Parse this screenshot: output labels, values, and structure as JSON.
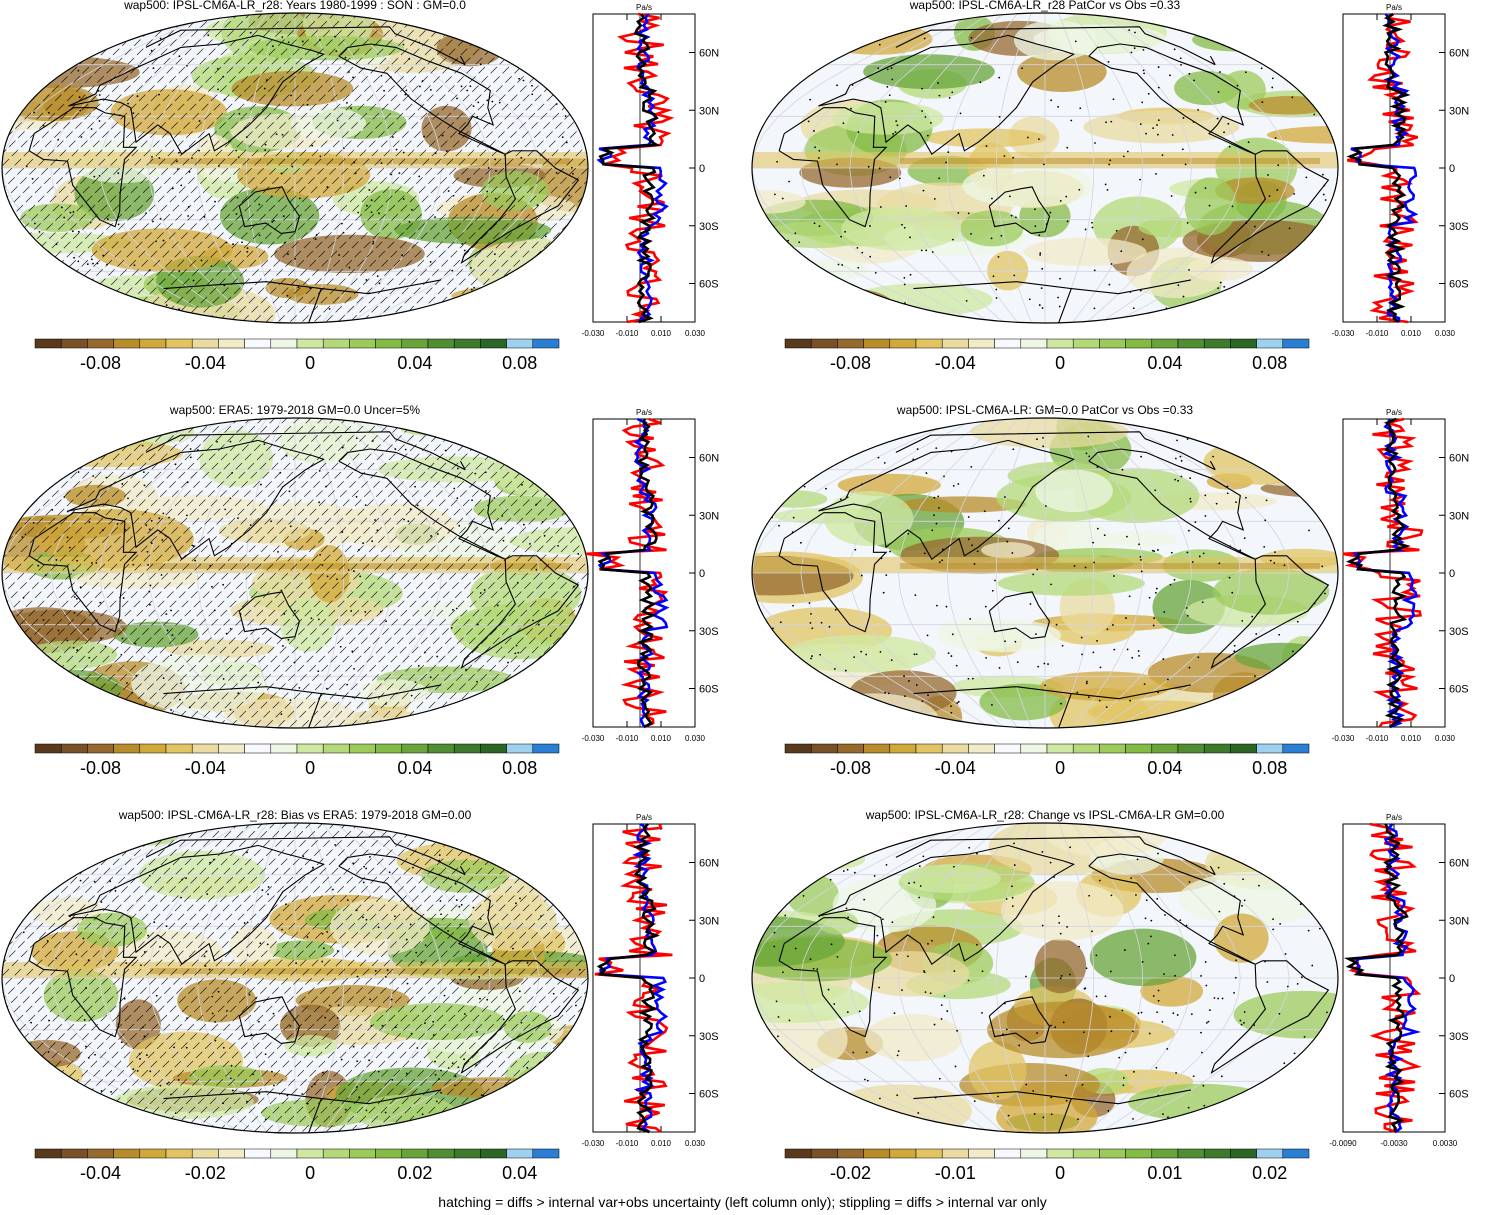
{
  "variable": "wap500",
  "units": "Pa/s",
  "lat_labels": [
    "60N",
    "30N",
    "0",
    "30S",
    "60S"
  ],
  "colors": {
    "series_red": "#ff0000",
    "series_blue": "#0000ff",
    "series_black": "#000000",
    "colorbar": [
      "#5a3a1c",
      "#7a5126",
      "#96692e",
      "#b88c2a",
      "#d1a83a",
      "#e2c463",
      "#eadba0",
      "#f2ebc8",
      "#f8f8ff",
      "#eef7e6",
      "#cfe8a1",
      "#b4d97a",
      "#9ccb5c",
      "#84bb45",
      "#68a43a",
      "#4f8e32",
      "#3d7a2c",
      "#2c6624",
      "#9ed0f0",
      "#2a7fd4"
    ]
  },
  "panels": [
    {
      "id": "p1",
      "title": "wap500: IPSL-CM6A-LR_r28: Years 1980-1999 : SON : GM=0.0",
      "colorbar_labels": [
        "-0.08",
        "-0.04",
        "0",
        "0.04",
        "0.08"
      ],
      "profile_ticks": [
        "-0.030",
        "-0.010",
        "0.010",
        "0.030"
      ],
      "hatched": true,
      "stippled": true
    },
    {
      "id": "p2",
      "title": "wap500: IPSL-CM6A-LR_r28 PatCor vs Obs =0.33",
      "colorbar_labels": [
        "-0.08",
        "-0.04",
        "0",
        "0.04",
        "0.08"
      ],
      "profile_ticks": [
        "-0.030",
        "-0.010",
        "0.010",
        "0.030"
      ],
      "hatched": false,
      "stippled": true
    },
    {
      "id": "p3",
      "title": "wap500: ERA5: 1979-2018 GM=0.0 Uncer=5%",
      "colorbar_labels": [
        "-0.08",
        "-0.04",
        "0",
        "0.04",
        "0.08"
      ],
      "profile_ticks": [
        "-0.030",
        "-0.010",
        "0.010",
        "0.030"
      ],
      "hatched": true,
      "stippled": true
    },
    {
      "id": "p4",
      "title": "wap500: IPSL-CM6A-LR: GM=0.0 PatCor vs Obs =0.33",
      "colorbar_labels": [
        "-0.08",
        "-0.04",
        "0",
        "0.04",
        "0.08"
      ],
      "profile_ticks": [
        "-0.030",
        "-0.010",
        "0.010",
        "0.030"
      ],
      "hatched": false,
      "stippled": true
    },
    {
      "id": "p5",
      "title": "wap500: IPSL-CM6A-LR_r28: Bias vs ERA5: 1979-2018  GM=0.00",
      "colorbar_labels": [
        "-0.04",
        "-0.02",
        "0",
        "0.02",
        "0.04"
      ],
      "profile_ticks": [
        "-0.030",
        "-0.010",
        "0.010",
        "0.030"
      ],
      "hatched": true,
      "stippled": true
    },
    {
      "id": "p6",
      "title": "wap500: IPSL-CM6A-LR_r28: Change vs IPSL-CM6A-LR GM=0.00",
      "colorbar_labels": [
        "-0.02",
        "-0.01",
        "0",
        "0.01",
        "0.02"
      ],
      "profile_ticks": [
        "-0.0090",
        "-0.0030",
        "0.0030"
      ],
      "hatched": false,
      "stippled": true
    }
  ],
  "footnote": "hatching = diffs > internal var+obs uncertainty (left column only); stippling = diffs > internal var only"
}
